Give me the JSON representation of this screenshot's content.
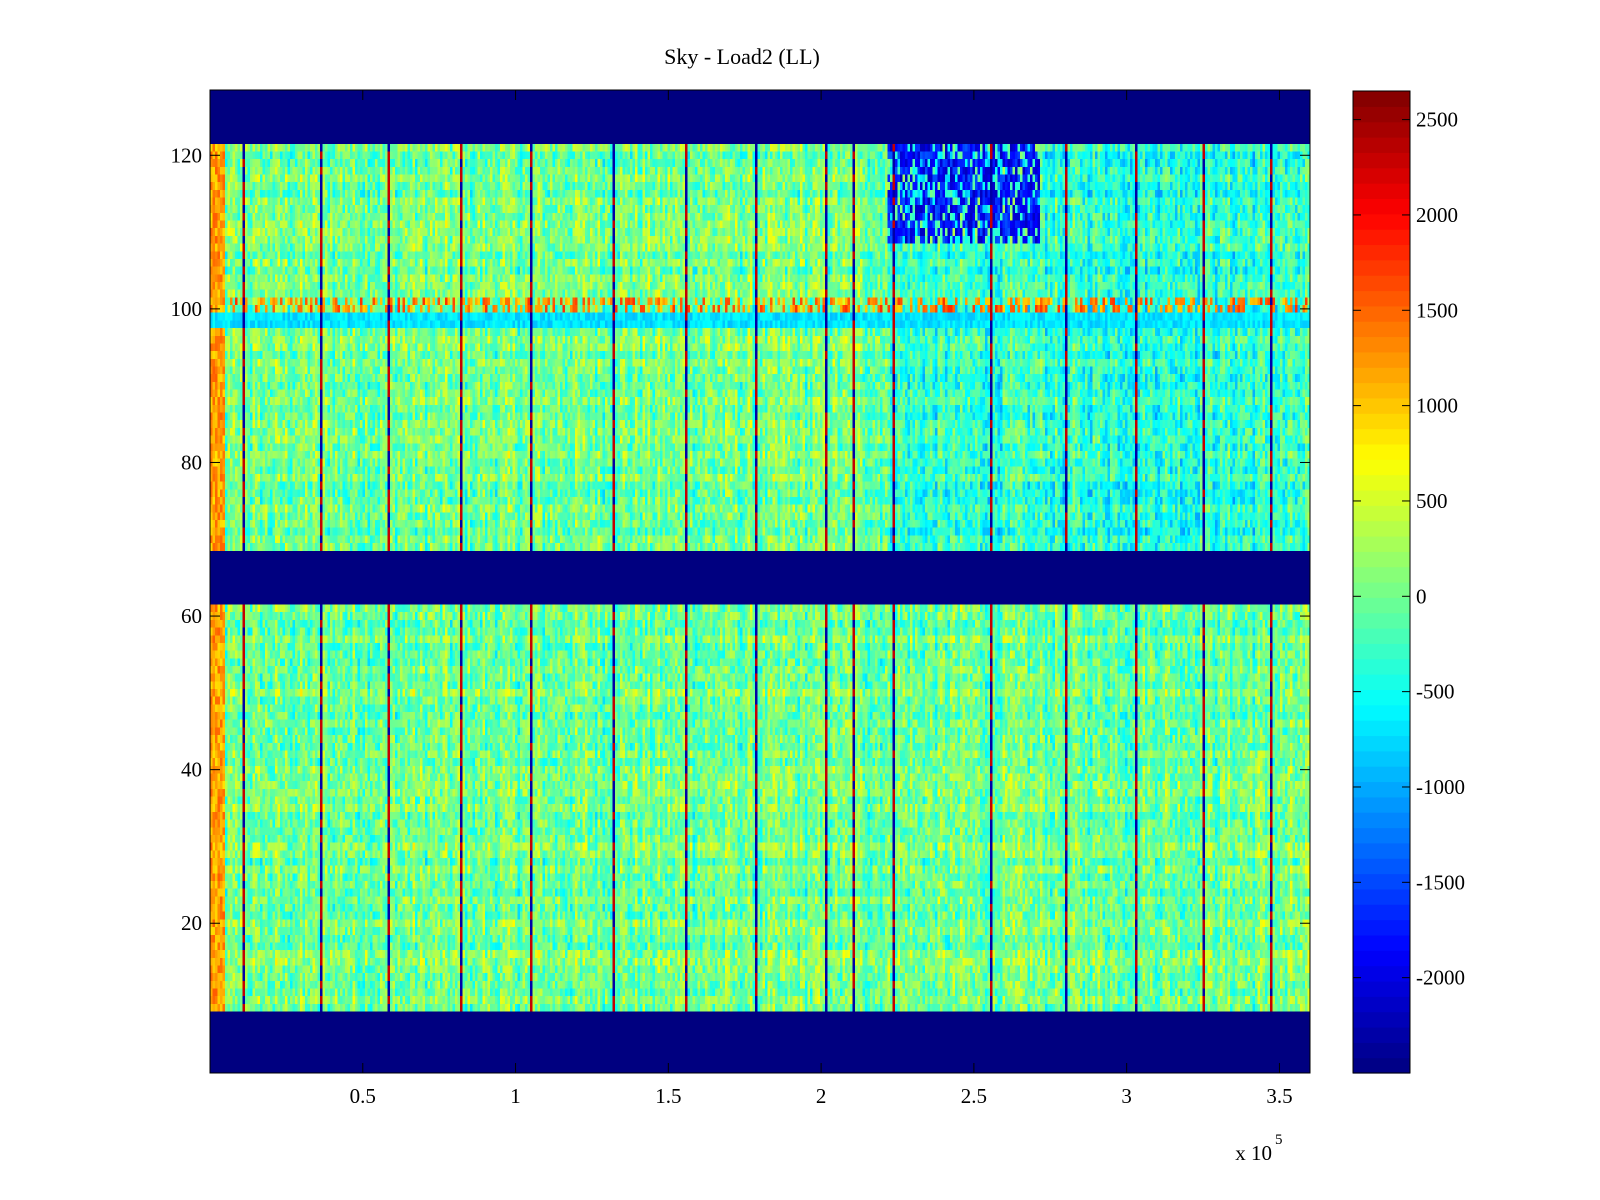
{
  "chart_data": {
    "type": "heatmap",
    "title": "Sky - Load2 (LL)",
    "xlabel": "",
    "ylabel": "",
    "colormap": "jet",
    "xlim": [
      0,
      360000
    ],
    "ylim": [
      0.5,
      128.5
    ],
    "x_exponent_label": "x 10",
    "x_exponent_power": "5",
    "x_ticks": [
      {
        "value": 50000,
        "label": "0.5"
      },
      {
        "value": 100000,
        "label": "1"
      },
      {
        "value": 150000,
        "label": "1.5"
      },
      {
        "value": 200000,
        "label": "2"
      },
      {
        "value": 250000,
        "label": "2.5"
      },
      {
        "value": 300000,
        "label": "3"
      },
      {
        "value": 350000,
        "label": "3.5"
      }
    ],
    "y_ticks": [
      {
        "value": 20,
        "label": "20"
      },
      {
        "value": 40,
        "label": "40"
      },
      {
        "value": 60,
        "label": "60"
      },
      {
        "value": 80,
        "label": "80"
      },
      {
        "value": 100,
        "label": "100"
      },
      {
        "value": 120,
        "label": "120"
      }
    ],
    "colorbar": {
      "range": [
        -2500,
        2650
      ],
      "ticks": [
        {
          "value": 2500,
          "label": "2500"
        },
        {
          "value": 2000,
          "label": "2000"
        },
        {
          "value": 1500,
          "label": "1500"
        },
        {
          "value": 1000,
          "label": "1000"
        },
        {
          "value": 500,
          "label": "500"
        },
        {
          "value": 0,
          "label": "0"
        },
        {
          "value": -500,
          "label": "-500"
        },
        {
          "value": -1000,
          "label": "-1000"
        },
        {
          "value": -1500,
          "label": "-1500"
        },
        {
          "value": -2000,
          "label": "-2000"
        }
      ]
    },
    "blank_row_bands": [
      {
        "y": [
          0.5,
          8.5
        ],
        "value": -2500
      },
      {
        "y": [
          61.5,
          68.5
        ],
        "value": -2500
      },
      {
        "y": [
          121.5,
          128.5
        ],
        "value": -2500
      }
    ],
    "vertical_stripes_x": [
      11000,
      36000,
      58500,
      82000,
      105000,
      132500,
      156000,
      179000,
      201500,
      211000,
      224000,
      256000,
      280500,
      303000,
      325500,
      347000
    ],
    "hot_row": {
      "y": 100,
      "value": 1500
    },
    "cold_region": {
      "x": [
        222000,
        272000
      ],
      "y": [
        108,
        121.5
      ],
      "value": -1800
    },
    "left_edge_hot": {
      "x": [
        0,
        5000
      ],
      "value": 1200
    },
    "typical_value": 0
  }
}
